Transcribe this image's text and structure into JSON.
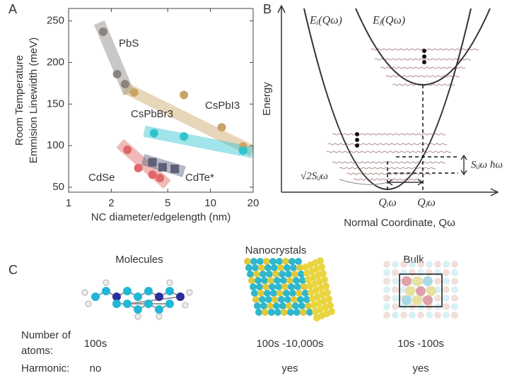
{
  "chart_data": {
    "type": "scatter",
    "panel_label": "A",
    "xlabel": "NC diameter/edgelength (nm)",
    "ylabel": [
      "Room Temperature",
      "Emmision Linewidth (meV)"
    ],
    "xscale": "log",
    "xlim": [
      1,
      20
    ],
    "xticks": [
      1,
      2,
      5,
      10,
      20
    ],
    "ylim": [
      44,
      265
    ],
    "yticks": [
      50,
      100,
      150,
      200,
      250
    ],
    "series": [
      {
        "name": "PbS",
        "color": "#8a8480",
        "marker": "circle",
        "x": [
          1.75,
          2.2,
          2.5
        ],
        "values": [
          237,
          186,
          174
        ]
      },
      {
        "name": "CsPbI3",
        "color": "#c9a467",
        "marker": "circle",
        "x": [
          2.9,
          6.5,
          12,
          17
        ],
        "values": [
          164,
          161,
          122,
          99
        ]
      },
      {
        "name": "CsPbBr3",
        "color": "#2fc3cf",
        "marker": "circle",
        "x": [
          4,
          6.5,
          17
        ],
        "values": [
          115,
          111,
          94
        ]
      },
      {
        "name": "CdSe",
        "color": "#e06767",
        "marker": "circle",
        "x": [
          2.6,
          3.1,
          3.9,
          4.4
        ],
        "values": [
          95,
          73,
          65,
          61
        ]
      },
      {
        "name": "CdTe*",
        "color": "#5c6078",
        "marker": "square",
        "x": [
          3.9,
          4.6,
          5.6
        ],
        "values": [
          80,
          74,
          72
        ]
      }
    ]
  },
  "panel_b": {
    "panel_label": "B",
    "ylabel": "Energy",
    "xlabel": "Normal Coordinate, Qω",
    "curve_i": "Eᵢ(Qω)",
    "curve_j": "Eⱼ(Qω)",
    "q_i": "Qᵢω",
    "q_j": "Qⱼω",
    "energy_gap": "Sᵢⱼω ħω",
    "displacement": "√2Sᵢⱼω"
  },
  "panel_c": {
    "panel_label": "C",
    "columns": [
      "Molecules",
      "Nanocrystals",
      "Bulk"
    ],
    "rows": [
      {
        "label": [
          "Number of",
          "atoms:"
        ],
        "values": [
          "100s",
          "100s -10,000s",
          "10s -100s"
        ]
      },
      {
        "label": [
          "Harmonic:"
        ],
        "values": [
          "no",
          "yes",
          "yes"
        ]
      }
    ]
  }
}
